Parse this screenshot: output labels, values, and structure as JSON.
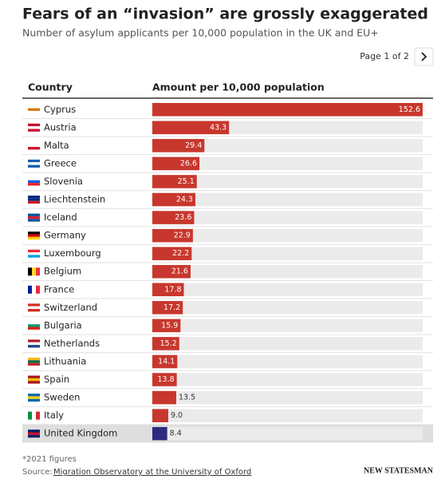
{
  "chart_data": {
    "type": "bar",
    "title": "Fears of an “invasion” are grossly exaggerated",
    "subtitle": "Number of asylum applicants per 10,000 population in the UK and EU+",
    "pager": "Page 1 of 2",
    "column_headers": [
      "Country",
      "Amount per 10,000 population"
    ],
    "categories": [
      "Cyprus",
      "Austria",
      "Malta",
      "Greece",
      "Slovenia",
      "Liechtenstein",
      "Iceland",
      "Germany",
      "Luxembourg",
      "Belgium",
      "France",
      "Switzerland",
      "Bulgaria",
      "Netherlands",
      "Lithuania",
      "Spain",
      "Sweden",
      "Italy",
      "United Kingdom"
    ],
    "values": [
      152.6,
      43.3,
      29.4,
      26.6,
      25.1,
      24.3,
      23.6,
      22.9,
      22.2,
      21.6,
      17.8,
      17.2,
      15.9,
      15.2,
      14.1,
      13.8,
      13.5,
      9.0,
      8.4
    ],
    "value_labels": [
      "152.6",
      "43.3",
      "29.4",
      "26.6",
      "25.1",
      "24.3",
      "23.6",
      "22.9",
      "22.2",
      "21.6",
      "17.8",
      "17.2",
      "15.9",
      "15.2",
      "14.1",
      "13.8",
      "13.5",
      "9.0",
      "8.4"
    ],
    "colors": [
      "#c8372d",
      "#c8372d",
      "#c8372d",
      "#c8372d",
      "#c8372d",
      "#c8372d",
      "#c8372d",
      "#c8372d",
      "#c8372d",
      "#c8372d",
      "#c8372d",
      "#c8372d",
      "#c8372d",
      "#c8372d",
      "#c8372d",
      "#c8372d",
      "#c8372d",
      "#c8372d",
      "#2e2a80"
    ],
    "highlight": "United Kingdom",
    "footnote": "*2021 figures",
    "source_label": "Source:",
    "source": "Migration Observatory at the University of Oxford",
    "logo": "NEW STATESMAN"
  }
}
